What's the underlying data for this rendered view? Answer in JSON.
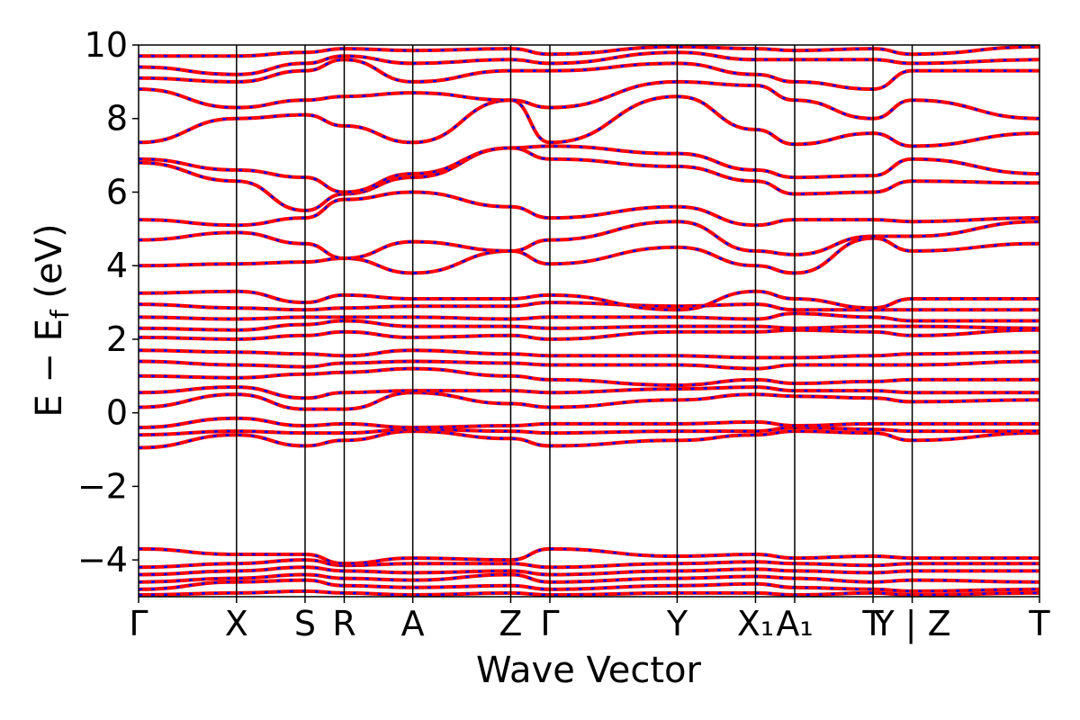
{
  "chart_data": {
    "type": "line",
    "xlabel": "Wave Vector",
    "ylabel": "E − Ef (eV)",
    "ylabel_parts": {
      "main": "E − E",
      "sub": "f",
      "unit": " (eV)"
    },
    "ylim": [
      -5,
      10
    ],
    "yticks": [
      10,
      8,
      6,
      4,
      2,
      0,
      -2,
      -4
    ],
    "ytick_labels": [
      "10",
      "8",
      "6",
      "4",
      "2",
      "0",
      "−2",
      "−4"
    ],
    "grid": false,
    "series_colors": {
      "primary": "#ff0000",
      "secondary": "#0000ff"
    },
    "kpoints": [
      {
        "label": "Γ",
        "x": 0.0
      },
      {
        "label": "X",
        "x": 1.0
      },
      {
        "label": "S",
        "x": 1.7
      },
      {
        "label": "R",
        "x": 2.1
      },
      {
        "label": "A",
        "x": 2.8
      },
      {
        "label": "Z",
        "x": 3.8
      },
      {
        "label": "Γ",
        "x": 4.2
      },
      {
        "label": "Y",
        "x": 5.5
      },
      {
        "label": "X₁",
        "x": 6.3
      },
      {
        "label": "A₁",
        "x": 6.7
      },
      {
        "label": "T",
        "x": 7.5
      },
      {
        "label": "Y | Z",
        "x": 7.9
      },
      {
        "label": "T",
        "x": 9.2
      }
    ],
    "xlim": [
      0,
      9.2
    ],
    "bands": [
      [
        -4.95,
        -4.9,
        -4.85,
        -4.9,
        -4.95,
        -4.9,
        -4.95,
        -4.9,
        -4.9,
        -4.95,
        -4.9,
        -4.95,
        -4.9
      ],
      [
        -4.8,
        -4.6,
        -4.55,
        -4.7,
        -4.75,
        -4.7,
        -4.8,
        -4.7,
        -4.65,
        -4.75,
        -4.8,
        -4.85,
        -4.8
      ],
      [
        -4.6,
        -4.5,
        -4.4,
        -4.5,
        -4.55,
        -4.4,
        -4.6,
        -4.5,
        -4.45,
        -4.5,
        -4.6,
        -4.55,
        -4.6
      ],
      [
        -4.4,
        -4.3,
        -4.2,
        -4.3,
        -4.35,
        -4.3,
        -4.4,
        -4.3,
        -4.25,
        -4.3,
        -4.35,
        -4.3,
        -4.3
      ],
      [
        -4.2,
        -4.1,
        -4.0,
        -4.15,
        -4.1,
        -4.1,
        -4.2,
        -4.1,
        -4.05,
        -4.1,
        -4.15,
        -4.1,
        -4.1
      ],
      [
        -3.7,
        -3.85,
        -3.85,
        -4.1,
        -3.95,
        -4.0,
        -3.7,
        -3.9,
        -3.85,
        -3.95,
        -3.9,
        -3.95,
        -3.95
      ],
      [
        -0.95,
        -0.6,
        -0.9,
        -0.75,
        -0.5,
        -0.7,
        -0.9,
        -0.75,
        -0.6,
        -0.5,
        -0.55,
        -0.75,
        -0.55
      ],
      [
        -0.6,
        -0.5,
        -0.55,
        -0.55,
        -0.45,
        -0.5,
        -0.55,
        -0.5,
        -0.5,
        -0.4,
        -0.45,
        -0.5,
        -0.5
      ],
      [
        -0.4,
        -0.15,
        -0.35,
        -0.3,
        -0.4,
        -0.35,
        -0.3,
        -0.3,
        -0.25,
        -0.35,
        -0.3,
        -0.3,
        -0.3
      ],
      [
        0.15,
        0.5,
        0.1,
        0.1,
        0.55,
        0.25,
        0.15,
        0.35,
        0.5,
        0.45,
        0.4,
        0.3,
        0.35
      ],
      [
        0.55,
        0.7,
        0.4,
        0.55,
        0.6,
        0.6,
        0.55,
        0.65,
        0.7,
        0.6,
        0.6,
        0.55,
        0.55
      ],
      [
        1.0,
        0.95,
        1.05,
        1.1,
        1.2,
        1.0,
        0.9,
        0.75,
        0.9,
        0.8,
        0.85,
        0.9,
        0.9
      ],
      [
        1.4,
        1.3,
        1.25,
        1.35,
        1.4,
        1.35,
        1.3,
        1.3,
        1.2,
        1.3,
        1.3,
        1.3,
        1.4
      ],
      [
        1.7,
        1.65,
        1.6,
        1.55,
        1.7,
        1.6,
        1.55,
        1.55,
        1.5,
        1.5,
        1.55,
        1.6,
        1.65
      ],
      [
        2.05,
        2.0,
        2.1,
        2.2,
        2.05,
        2.1,
        2.0,
        2.2,
        2.2,
        2.25,
        2.2,
        2.1,
        2.25
      ],
      [
        2.3,
        2.25,
        2.4,
        2.5,
        2.35,
        2.35,
        2.3,
        2.35,
        2.35,
        2.3,
        2.35,
        2.35,
        2.3
      ],
      [
        2.6,
        2.55,
        2.6,
        2.6,
        2.6,
        2.55,
        2.6,
        2.6,
        2.55,
        2.7,
        2.6,
        2.5,
        2.5
      ],
      [
        2.95,
        2.85,
        2.8,
        2.85,
        2.9,
        2.9,
        3.0,
        2.9,
        2.95,
        2.8,
        2.8,
        2.8,
        2.8
      ],
      [
        3.25,
        3.3,
        3.0,
        3.2,
        3.1,
        3.1,
        3.2,
        2.8,
        3.3,
        3.1,
        2.85,
        3.1,
        3.1
      ],
      [
        4.0,
        4.05,
        4.1,
        4.2,
        3.8,
        4.4,
        4.05,
        4.5,
        4.0,
        3.8,
        4.75,
        4.4,
        4.6
      ],
      [
        4.7,
        4.9,
        4.6,
        4.2,
        4.65,
        4.4,
        4.7,
        5.2,
        4.4,
        4.3,
        4.8,
        4.8,
        5.2
      ],
      [
        5.25,
        5.1,
        5.3,
        5.8,
        6.0,
        5.6,
        5.3,
        5.6,
        5.1,
        5.25,
        5.25,
        5.2,
        5.3
      ],
      [
        6.8,
        6.3,
        5.5,
        5.95,
        6.4,
        7.2,
        6.9,
        6.7,
        6.3,
        5.95,
        6.0,
        6.3,
        6.25
      ],
      [
        6.9,
        6.6,
        6.4,
        6.0,
        6.5,
        7.2,
        7.25,
        7.05,
        6.6,
        6.4,
        6.45,
        6.9,
        6.5
      ],
      [
        7.35,
        8.0,
        8.1,
        7.8,
        7.35,
        8.5,
        7.35,
        8.6,
        7.7,
        7.3,
        7.6,
        7.25,
        7.6
      ],
      [
        8.8,
        8.3,
        8.5,
        8.6,
        8.7,
        8.5,
        8.3,
        9.0,
        8.9,
        8.5,
        8.0,
        8.5,
        8.0
      ],
      [
        9.1,
        9.0,
        9.3,
        9.6,
        9.0,
        9.3,
        9.3,
        9.5,
        9.2,
        9.0,
        8.8,
        9.3,
        9.3
      ],
      [
        9.4,
        9.2,
        9.5,
        9.7,
        9.5,
        9.6,
        9.5,
        9.8,
        9.6,
        9.6,
        9.6,
        9.5,
        9.6
      ],
      [
        9.7,
        9.7,
        9.8,
        9.9,
        9.85,
        9.9,
        9.75,
        9.95,
        9.9,
        9.85,
        9.9,
        9.75,
        9.95
      ]
    ]
  }
}
